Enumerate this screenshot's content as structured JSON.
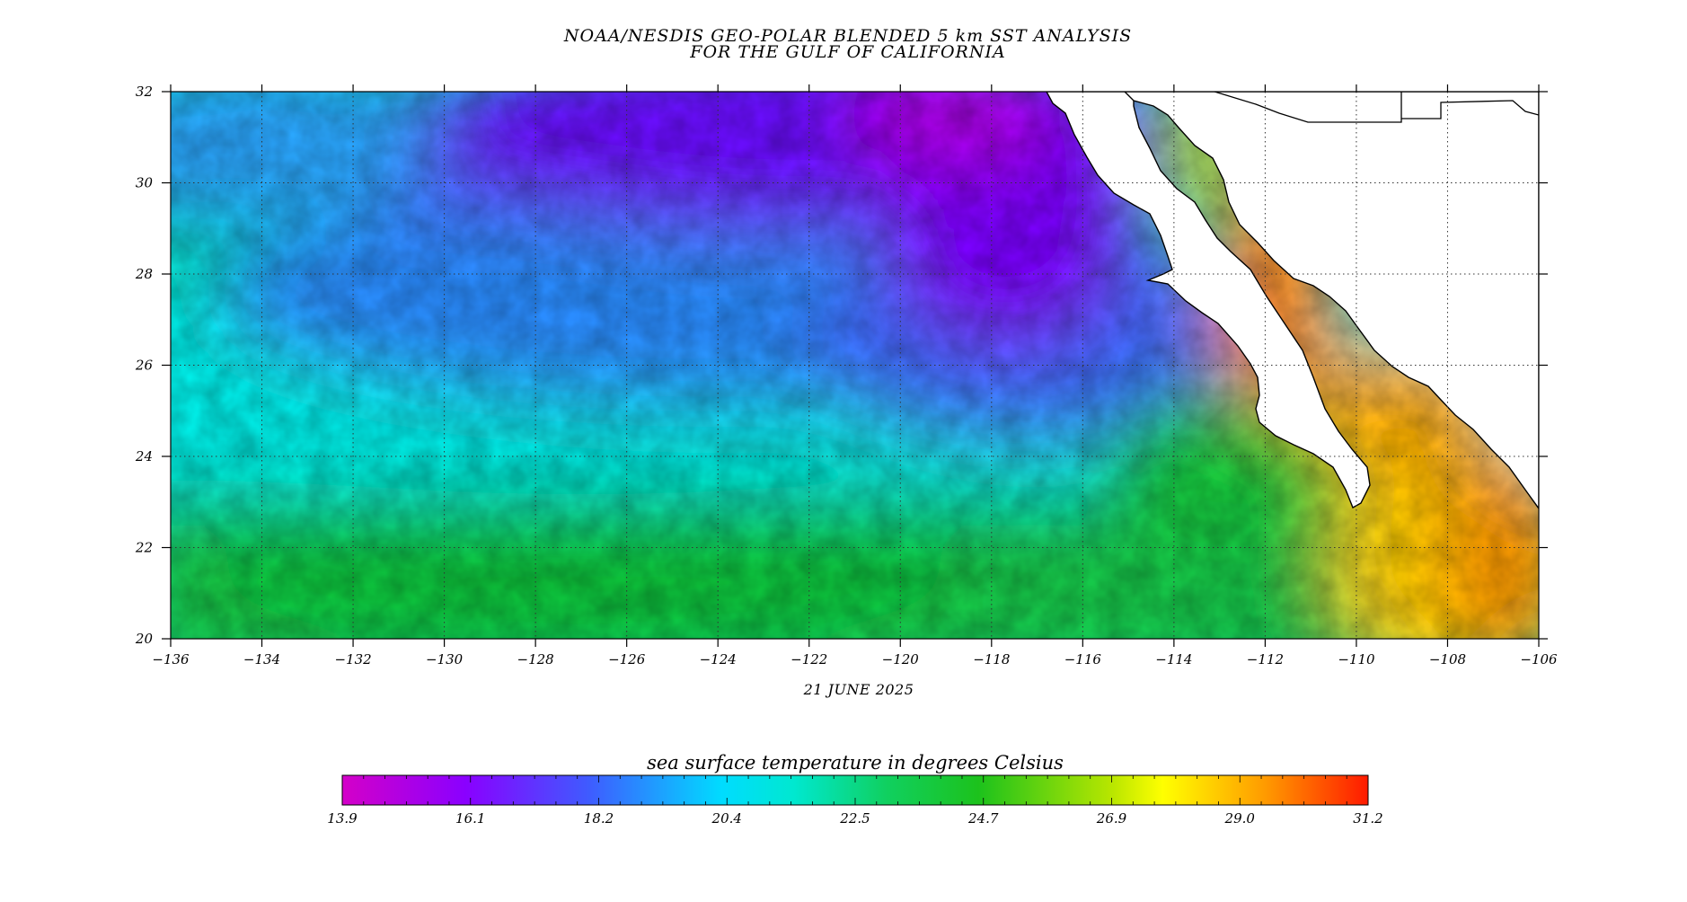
{
  "title": {
    "line1": "NOAA/NESDIS GEO-POLAR BLENDED 5 km SST ANALYSIS",
    "line2": "FOR THE GULF OF CALIFORNIA"
  },
  "date": "21 JUNE 2025",
  "map": {
    "lon_range": [
      -136,
      -106
    ],
    "lat_range": [
      20,
      32
    ],
    "lon_ticks": [
      -136,
      -134,
      -132,
      -130,
      -128,
      -126,
      -124,
      -122,
      -120,
      -118,
      -116,
      -114,
      -112,
      -110,
      -108,
      -106
    ],
    "lat_ticks": [
      20,
      22,
      24,
      26,
      28,
      30,
      32
    ],
    "lon_tick_labels": [
      "−136",
      "−134",
      "−132",
      "−130",
      "−128",
      "−126",
      "−124",
      "−122",
      "−120",
      "−118",
      "−116",
      "−114",
      "−112",
      "−110",
      "−108",
      "−106"
    ],
    "lat_tick_labels": [
      "20",
      "22",
      "24",
      "26",
      "28",
      "30",
      "32"
    ],
    "grid": "dotted",
    "land_color": "#ffffff",
    "coastline_color": "#000000"
  },
  "colorbar": {
    "title": "sea surface temperature in degrees Celsius",
    "min": 13.9,
    "max": 31.2,
    "tick_labels": [
      "13.9",
      "16.1",
      "18.2",
      "20.4",
      "22.5",
      "24.7",
      "26.9",
      "29.0",
      "31.2"
    ],
    "colors": [
      "#d400c8",
      "#8a00ff",
      "#3f5bff",
      "#00dcff",
      "#00e5a0",
      "#1ccb1c",
      "#b8e600",
      "#ffff00",
      "#ff9a00",
      "#ff1a00"
    ]
  }
}
